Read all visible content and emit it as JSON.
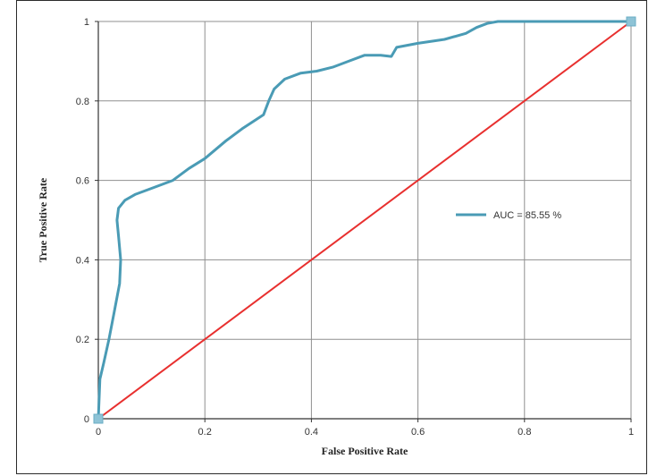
{
  "chart_data": {
    "type": "line",
    "title": "",
    "xlabel": "False Positive Rate",
    "ylabel": "True Positive Rate",
    "xlim": [
      0,
      1
    ],
    "ylim": [
      0,
      1
    ],
    "x_ticks": [
      "0",
      "0.2",
      "0.4",
      "0.6",
      "0.8",
      "1"
    ],
    "y_ticks": [
      "0",
      "0.2",
      "0.4",
      "0.6",
      "0.8",
      "1"
    ],
    "grid": true,
    "legend_position": "right-middle",
    "legend": [
      "AUC = 85.55 %"
    ],
    "series": [
      {
        "name": "AUC = 85.55 %",
        "color": "#4a9bb5",
        "x": [
          0,
          0.003,
          0.01,
          0.02,
          0.03,
          0.04,
          0.042,
          0.038,
          0.035,
          0.038,
          0.05,
          0.07,
          0.1,
          0.14,
          0.17,
          0.2,
          0.24,
          0.27,
          0.31,
          0.32,
          0.33,
          0.35,
          0.38,
          0.41,
          0.44,
          0.47,
          0.5,
          0.53,
          0.55,
          0.56,
          0.6,
          0.65,
          0.69,
          0.71,
          0.73,
          0.75,
          0.8,
          0.9,
          1
        ],
        "y": [
          0,
          0.1,
          0.14,
          0.2,
          0.27,
          0.34,
          0.4,
          0.46,
          0.5,
          0.53,
          0.55,
          0.565,
          0.58,
          0.6,
          0.63,
          0.655,
          0.7,
          0.73,
          0.765,
          0.8,
          0.83,
          0.855,
          0.87,
          0.875,
          0.885,
          0.9,
          0.915,
          0.915,
          0.912,
          0.935,
          0.945,
          0.955,
          0.97,
          0.985,
          0.995,
          1,
          1,
          1,
          1
        ]
      },
      {
        "name": "",
        "color": "#e8302f",
        "x": [
          0,
          1
        ],
        "y": [
          0,
          1
        ]
      }
    ],
    "endpoint_markers": [
      {
        "x": 0,
        "y": 0
      },
      {
        "x": 1,
        "y": 1
      }
    ]
  }
}
